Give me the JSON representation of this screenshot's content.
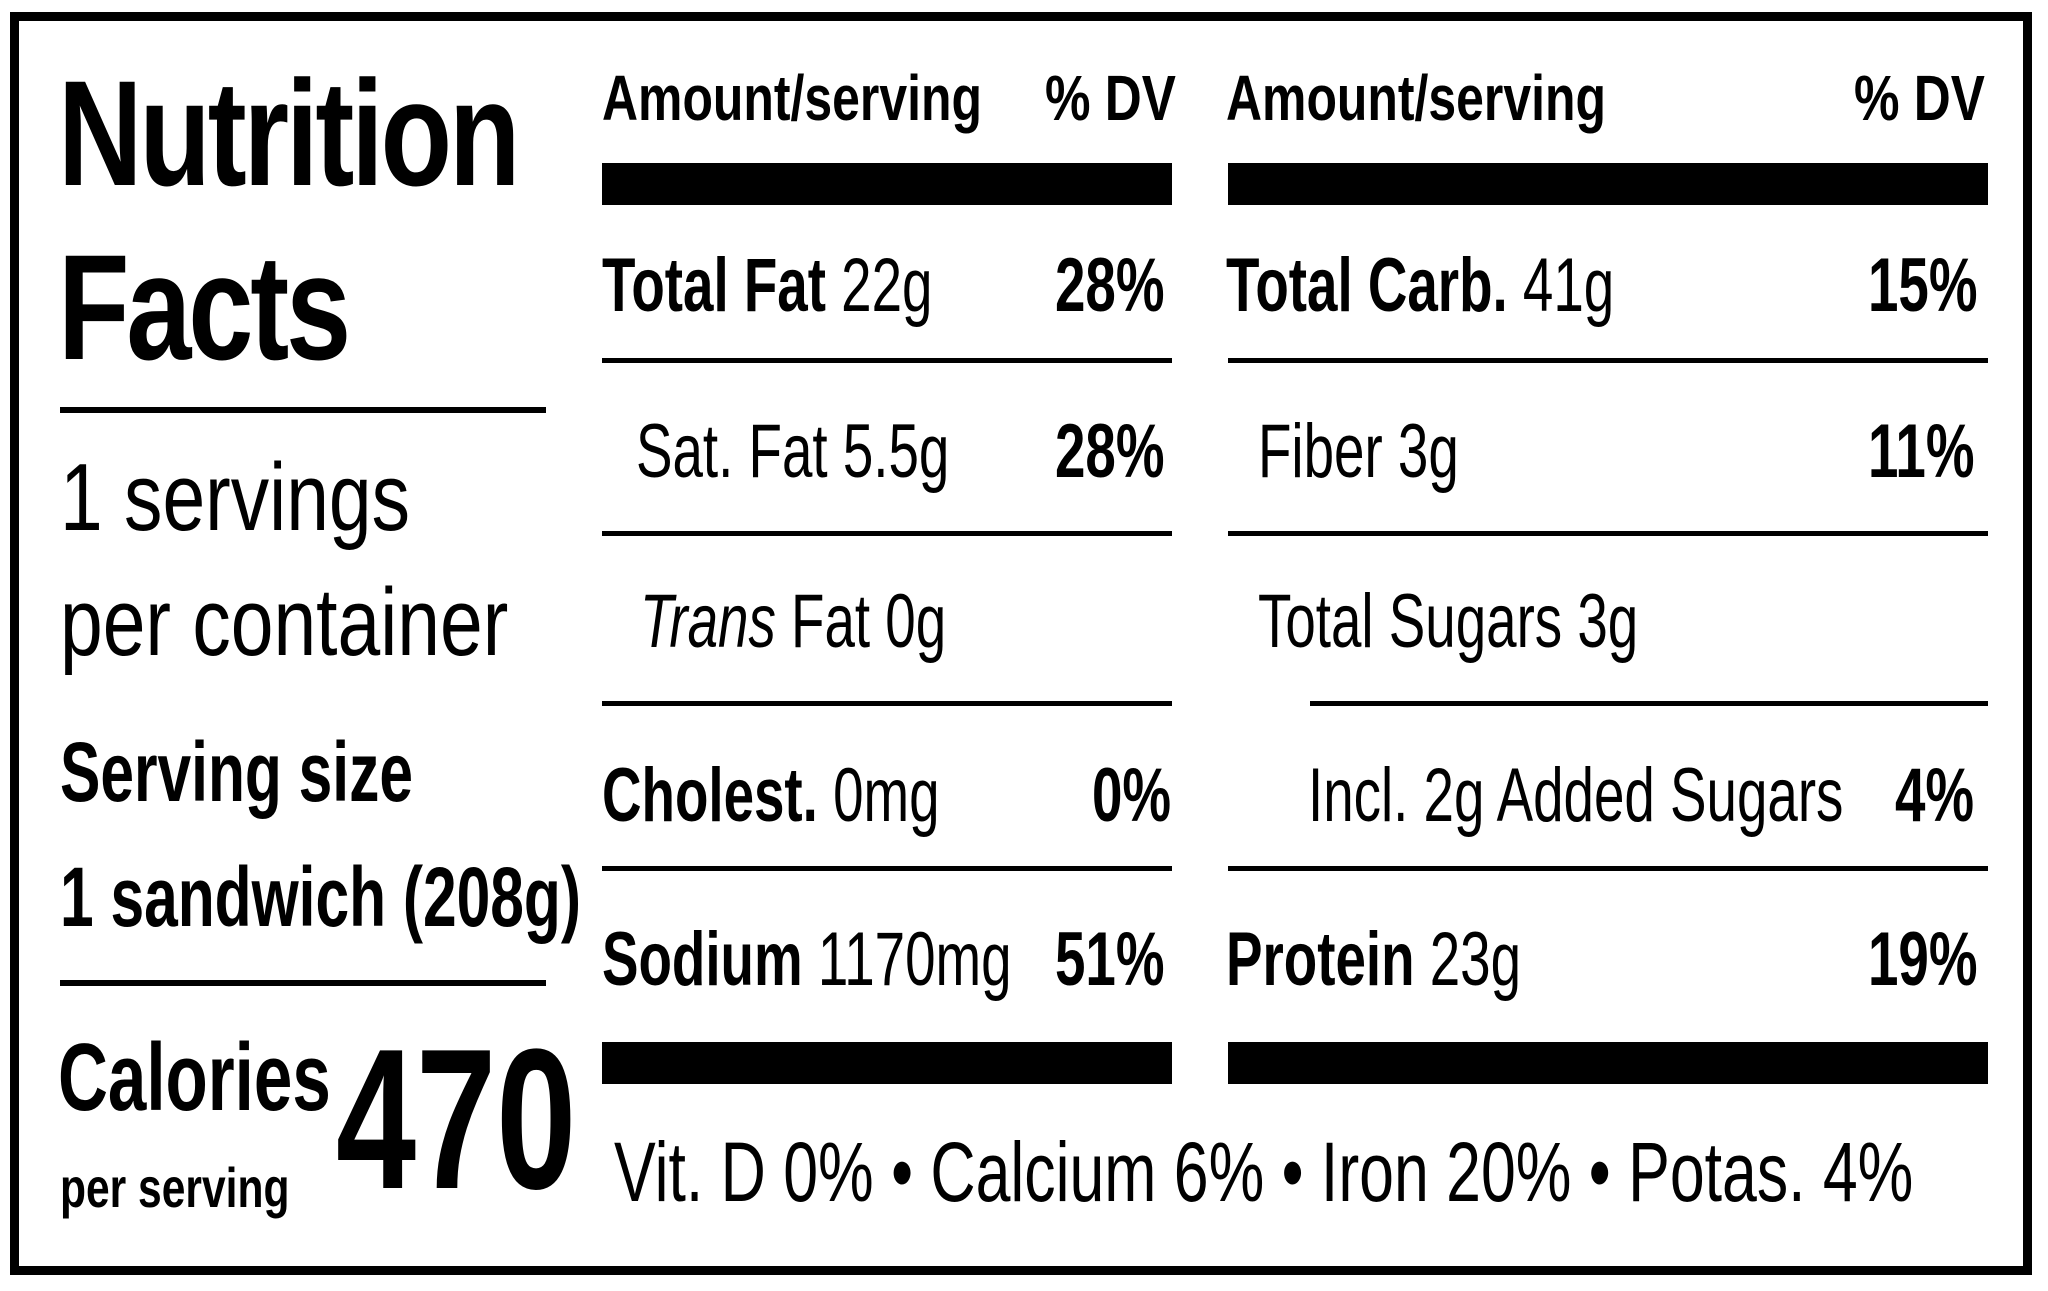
{
  "label": {
    "title_line1": "Nutrition",
    "title_line2": "Facts",
    "servings_line1": "1 servings",
    "servings_line2": "per container",
    "serving_size_label": "Serving size",
    "serving_size_value": "1 sandwich (208g)",
    "calories_label": "Calories",
    "per_serving": "per serving",
    "calories_value": "470"
  },
  "table": {
    "left_header": {
      "amount": "Amount/serving",
      "dv": "% DV"
    },
    "right_header": {
      "amount": "Amount/serving",
      "dv": "% DV"
    },
    "left_rows": [
      {
        "name": "Total Fat",
        "amount": "22g",
        "dv": "28%"
      },
      {
        "name": "Sat. Fat",
        "amount": "5.5g",
        "dv": "28%"
      },
      {
        "name": "Trans",
        "amount": "Fat 0g",
        "dv": ""
      },
      {
        "name": "Cholest.",
        "amount": "0mg",
        "dv": "0%"
      },
      {
        "name": "Sodium",
        "amount": "1170mg",
        "dv": "51%"
      }
    ],
    "right_rows": [
      {
        "name": "Total Carb.",
        "amount": "41g",
        "dv": "15%"
      },
      {
        "name": "Fiber",
        "amount": "3g",
        "dv": "11%"
      },
      {
        "name": "Total Sugars",
        "amount": "3g",
        "dv": ""
      },
      {
        "name": "Incl. 2g Added Sugars",
        "amount": "",
        "dv": "4%"
      },
      {
        "name": "Protein",
        "amount": "23g",
        "dv": "19%"
      }
    ],
    "vitamins": "Vit. D 0% • Calcium 6% • Iron 20% • Potas. 4%"
  }
}
